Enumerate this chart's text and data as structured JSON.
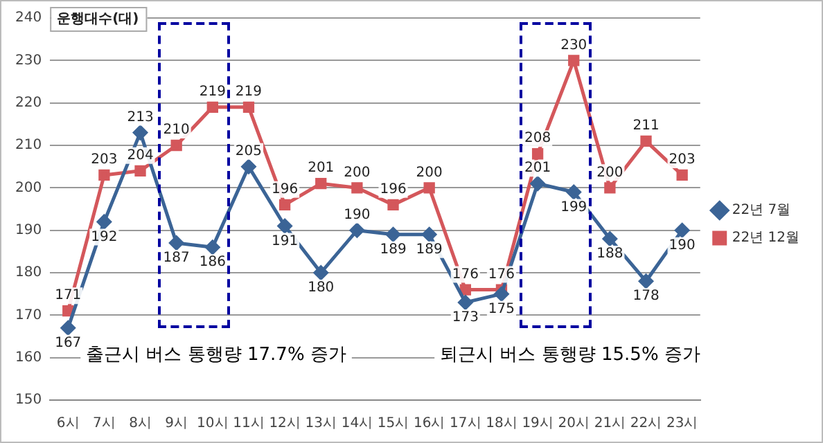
{
  "chart_data": {
    "type": "line",
    "ylabel": "운행대수(대)",
    "categories": [
      "6시",
      "7시",
      "8시",
      "9시",
      "10시",
      "11시",
      "12시",
      "13시",
      "14시",
      "15시",
      "16시",
      "17시",
      "18시",
      "19시",
      "20시",
      "21시",
      "22시",
      "23시"
    ],
    "series": [
      {
        "name": "22년 7월",
        "color": "#3b6496",
        "marker": "diamond",
        "values": [
          167,
          192,
          213,
          187,
          186,
          205,
          191,
          180,
          190,
          189,
          189,
          173,
          175,
          201,
          199,
          188,
          178,
          190
        ]
      },
      {
        "name": "22년 12월",
        "color": "#d4575b",
        "marker": "square",
        "values": [
          171,
          203,
          204,
          210,
          219,
          219,
          196,
          201,
          200,
          196,
          200,
          176,
          176,
          208,
          230,
          200,
          211,
          203
        ]
      }
    ],
    "ylim": [
      150,
      240
    ],
    "yticks": [
      150,
      160,
      170,
      180,
      190,
      200,
      210,
      220,
      230,
      240
    ],
    "grid": "y",
    "legend": "right",
    "data_labels": true,
    "line_style": "solid",
    "annotations": [
      "출근시 버스 통행량 17.7% 증가",
      "퇴근시 버스 통행량 15.5% 증가"
    ]
  }
}
